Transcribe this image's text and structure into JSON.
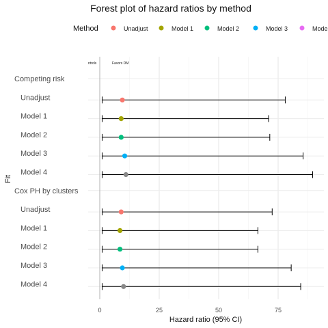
{
  "chart_data": {
    "type": "forest",
    "title": "Forest plot of hazard ratios by method",
    "xlabel": "Hazard ratio (95% CI)",
    "ylabel": "Fit",
    "xlim": [
      -3,
      95
    ],
    "xticks": [
      0,
      25,
      50,
      75
    ],
    "reference_line": 0,
    "annotations": [
      "ntrols",
      "Favors DM"
    ],
    "legend": {
      "title": "Method",
      "position": "top",
      "entries": [
        {
          "name": "Unadjust",
          "color": "#F8766D"
        },
        {
          "name": "Model 1",
          "color": "#A3A500"
        },
        {
          "name": "Model 2",
          "color": "#00BF7D"
        },
        {
          "name": "Model 3",
          "color": "#00B0F6"
        },
        {
          "name": "Mode",
          "color": "#E76BF3"
        }
      ]
    },
    "rows": [
      {
        "label": "Competing risk",
        "header": true
      },
      {
        "label": "Unadjust",
        "method": "Unadjust",
        "hr": 9.5,
        "lower": 1.0,
        "upper": 78
      },
      {
        "label": "Model 1",
        "method": "Model 1",
        "hr": 9.0,
        "lower": 1.0,
        "upper": 71
      },
      {
        "label": "Model 2",
        "method": "Model 2",
        "hr": 9.0,
        "lower": 1.0,
        "upper": 71.5
      },
      {
        "label": "Model 3",
        "method": "Model 3",
        "hr": 10.5,
        "lower": 1.0,
        "upper": 85.5
      },
      {
        "label": "Model 4",
        "method": "Model 4",
        "hr": 11.0,
        "lower": 1.0,
        "upper": 89.5
      },
      {
        "label": "Cox PH by clusters",
        "header": true
      },
      {
        "label": "Unadjust",
        "method": "Unadjust",
        "hr": 9.0,
        "lower": 1.0,
        "upper": 72.5
      },
      {
        "label": "Model 1",
        "method": "Model 1",
        "hr": 8.5,
        "lower": 1.0,
        "upper": 66.5
      },
      {
        "label": "Model 2",
        "method": "Model 2",
        "hr": 8.5,
        "lower": 1.0,
        "upper": 66.5
      },
      {
        "label": "Model 3",
        "method": "Model 3",
        "hr": 9.5,
        "lower": 1.0,
        "upper": 80.5
      },
      {
        "label": "Model 4",
        "method": "Model 4",
        "hr": 10.0,
        "lower": 1.0,
        "upper": 84.5
      }
    ]
  }
}
